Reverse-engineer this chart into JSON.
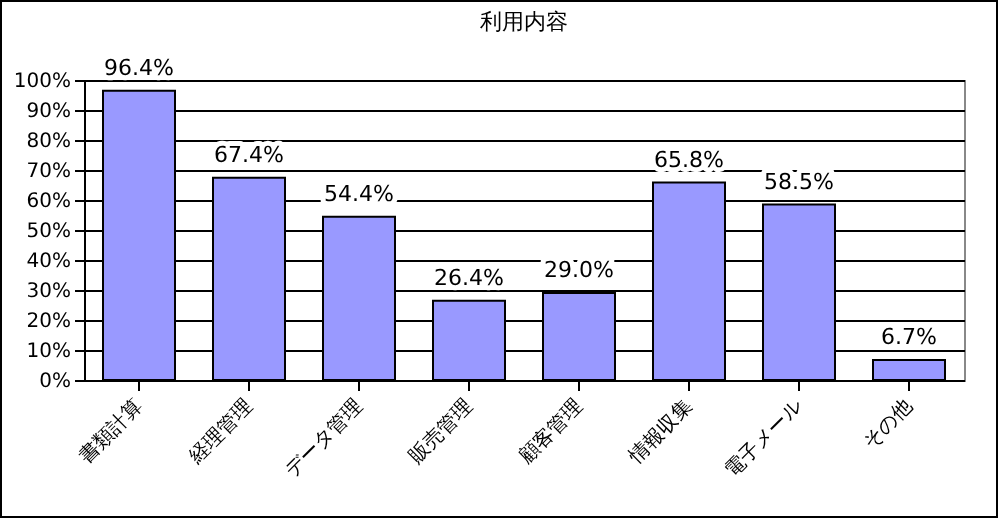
{
  "chart_data": {
    "type": "bar",
    "title": "利用内容",
    "categories": [
      "書類計算",
      "経理管理",
      "データ管理",
      "販売管理",
      "顧客管理",
      "情報収集",
      "電子メール",
      "その他"
    ],
    "values": [
      96.4,
      67.4,
      54.4,
      26.4,
      29.0,
      65.8,
      58.5,
      6.7
    ],
    "value_labels": [
      "96.4%",
      "67.4%",
      "54.4%",
      "26.4%",
      "29.0%",
      "65.8%",
      "58.5%",
      "6.7%"
    ],
    "color": "#9999ff",
    "ylim": [
      0,
      100
    ],
    "yticks": [
      {
        "value": 0,
        "label": "0%"
      },
      {
        "value": 10,
        "label": "10%"
      },
      {
        "value": 20,
        "label": "20%"
      },
      {
        "value": 30,
        "label": "30%"
      },
      {
        "value": 40,
        "label": "40%"
      },
      {
        "value": 50,
        "label": "50%"
      },
      {
        "value": 60,
        "label": "60%"
      },
      {
        "value": 70,
        "label": "70%"
      },
      {
        "value": 80,
        "label": "80%"
      },
      {
        "value": 90,
        "label": "90%"
      },
      {
        "value": 100,
        "label": "100%"
      }
    ],
    "grid": "y"
  }
}
